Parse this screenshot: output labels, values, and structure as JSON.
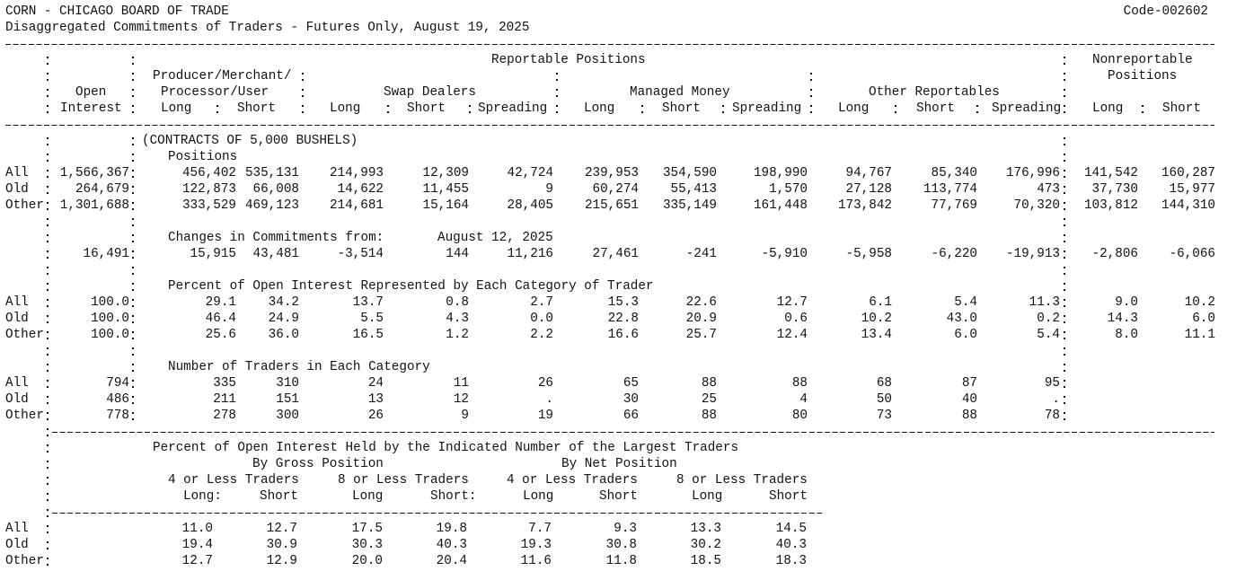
{
  "header": {
    "title": "CORN - CHICAGO BOARD OF TRADE",
    "code": "Code-002602",
    "subtitle": "Disaggregated Commitments of Traders - Futures Only, August 19, 2025"
  },
  "columns": {
    "reportable": "Reportable Positions",
    "nonreportable": [
      "Nonreportable",
      "Positions"
    ],
    "open": [
      "Open",
      "Interest"
    ],
    "producer": [
      "Producer/Merchant/",
      "Processor/User"
    ],
    "swap": "Swap Dealers",
    "managed": "Managed Money",
    "other": "Other Reportables",
    "sub": [
      "Long",
      "Short",
      "Long",
      "Short",
      "Spreading",
      "Long",
      "Short",
      "Spreading",
      "Long",
      "Short",
      "Spreading",
      "Long",
      "Short"
    ]
  },
  "positions": {
    "unit": "(CONTRACTS OF 5,000 BUSHELS)",
    "title": "Positions",
    "rows": [
      {
        "label": "All",
        "values": [
          "1,566,367",
          "456,402",
          "535,131",
          "214,993",
          "12,309",
          "42,724",
          "239,953",
          "354,590",
          "198,990",
          "94,767",
          "85,340",
          "176,996",
          "141,542",
          "160,287"
        ]
      },
      {
        "label": "Old",
        "values": [
          "264,679",
          "122,873",
          "66,008",
          "14,622",
          "11,455",
          "9",
          "60,274",
          "55,413",
          "1,570",
          "27,128",
          "113,774",
          "473",
          "37,730",
          "15,977"
        ]
      },
      {
        "label": "Other",
        "values": [
          "1,301,688",
          "333,529",
          "469,123",
          "214,681",
          "15,164",
          "28,405",
          "215,651",
          "335,149",
          "161,448",
          "173,842",
          "77,769",
          "70,320",
          "103,812",
          "144,310"
        ]
      }
    ]
  },
  "changes": {
    "title": "Changes in Commitments from:",
    "date": "August 12, 2025",
    "values": [
      "16,491",
      "15,915",
      "43,481",
      "-3,514",
      "144",
      "11,216",
      "27,461",
      "-241",
      "-5,910",
      "-5,958",
      "-6,220",
      "-19,913",
      "-2,806",
      "-6,066"
    ]
  },
  "percent": {
    "title": "Percent of Open Interest Represented by Each Category of Trader",
    "rows": [
      {
        "label": "All",
        "values": [
          "100.0",
          "29.1",
          "34.2",
          "13.7",
          "0.8",
          "2.7",
          "15.3",
          "22.6",
          "12.7",
          "6.1",
          "5.4",
          "11.3",
          "9.0",
          "10.2"
        ]
      },
      {
        "label": "Old",
        "values": [
          "100.0",
          "46.4",
          "24.9",
          "5.5",
          "4.3",
          "0.0",
          "22.8",
          "20.9",
          "0.6",
          "10.2",
          "43.0",
          "0.2",
          "14.3",
          "6.0"
        ]
      },
      {
        "label": "Other",
        "values": [
          "100.0",
          "25.6",
          "36.0",
          "16.5",
          "1.2",
          "2.2",
          "16.6",
          "25.7",
          "12.4",
          "13.4",
          "6.0",
          "5.4",
          "8.0",
          "11.1"
        ]
      }
    ]
  },
  "traders": {
    "title": "Number of Traders in Each Category",
    "rows": [
      {
        "label": "All",
        "values": [
          "794",
          "335",
          "310",
          "24",
          "11",
          "26",
          "65",
          "88",
          "88",
          "68",
          "87",
          "95"
        ]
      },
      {
        "label": "Old",
        "values": [
          "486",
          "211",
          "151",
          "13",
          "12",
          ".",
          "30",
          "25",
          "4",
          "50",
          "40",
          "."
        ]
      },
      {
        "label": "Other",
        "values": [
          "778",
          "278",
          "300",
          "26",
          "9",
          "19",
          "66",
          "88",
          "80",
          "73",
          "88",
          "78"
        ]
      }
    ]
  },
  "concentration": {
    "title": "Percent of Open Interest Held by the Indicated Number of the Largest Traders",
    "gross": "By Gross Position",
    "net": "By Net Position",
    "groups": [
      "4 or Less Traders",
      "8 or Less Traders",
      "4 or Less Traders",
      "8 or Less Traders"
    ],
    "sub": [
      "Long:",
      "Short",
      "Long",
      "Short:",
      "Long",
      "Short",
      "Long",
      "Short"
    ],
    "rows": [
      {
        "label": "All",
        "values": [
          "11.0",
          "12.7",
          "17.5",
          "19.8",
          "7.7",
          "9.3",
          "13.3",
          "14.5"
        ]
      },
      {
        "label": "Old",
        "values": [
          "19.4",
          "30.9",
          "30.3",
          "40.3",
          "19.3",
          "30.8",
          "30.2",
          "40.3"
        ]
      },
      {
        "label": "Other",
        "values": [
          "12.7",
          "12.9",
          "20.0",
          "20.4",
          "11.6",
          "11.8",
          "18.5",
          "18.3"
        ]
      }
    ]
  }
}
